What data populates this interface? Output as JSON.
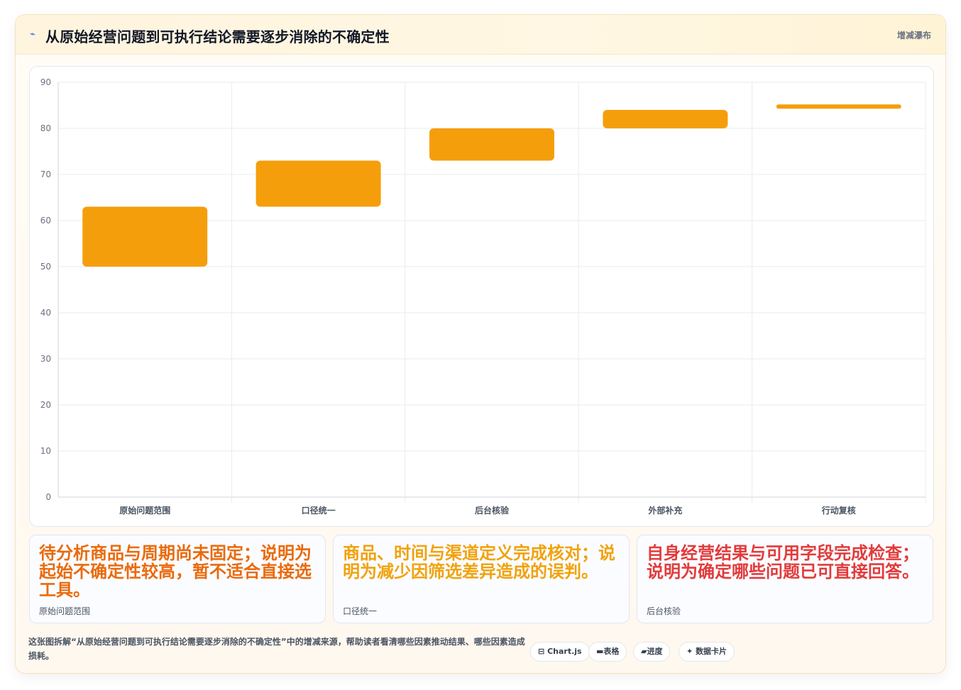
{
  "header": {
    "icon": "chart-pulse-icon",
    "title": "从原始经营问题到可执行结论需要逐步消除的不确定性",
    "tag": "增减瀑布"
  },
  "chart_data": {
    "type": "bar",
    "subtype": "floating-waterfall",
    "categories": [
      "原始问题范围",
      "口径统一",
      "后台核验",
      "外部补充",
      "行动复核"
    ],
    "ranges": [
      [
        50,
        63
      ],
      [
        63,
        73
      ],
      [
        73,
        80
      ],
      [
        80,
        84
      ],
      [
        84.5,
        85.2
      ]
    ],
    "ylim": [
      0,
      90
    ],
    "yticks": [
      0,
      10,
      20,
      30,
      40,
      50,
      60,
      70,
      80,
      90
    ],
    "grid": true,
    "legend": "none",
    "bar_color": "#f59e0b"
  },
  "cards": [
    {
      "text": "待分析商品与周期尚未固定；说明为起始不确定性较高，暂不适合直接选工具。",
      "label": "原始问题范围",
      "color": "#ea6a0c"
    },
    {
      "text": "商品、时间与渠道定义完成核对；说明为减少因筛选差异造成的误判。",
      "label": "口径统一",
      "color": "#f1a20c"
    },
    {
      "text": "自身经营结果与可用字段完成检查；说明为确定哪些问题已可直接回答。",
      "label": "后台核验",
      "color": "#e23b3b"
    }
  ],
  "footer": {
    "description": "这张图拆解“从原始经营问题到可执行结论需要逐步消除的不确定性”中的增减来源，帮助读者看清哪些因素推动结果、哪些因素造成损耗。",
    "pills": [
      {
        "icon": "code-icon",
        "glyph": "⊟",
        "label": "Chart.js"
      },
      {
        "icon": "table-icon",
        "glyph": "▬",
        "label": "表格"
      },
      {
        "icon": "progress-icon",
        "glyph": "▰",
        "label": "进度"
      },
      {
        "icon": "sparkle-icon",
        "glyph": "✦",
        "label": "数据卡片"
      }
    ]
  }
}
